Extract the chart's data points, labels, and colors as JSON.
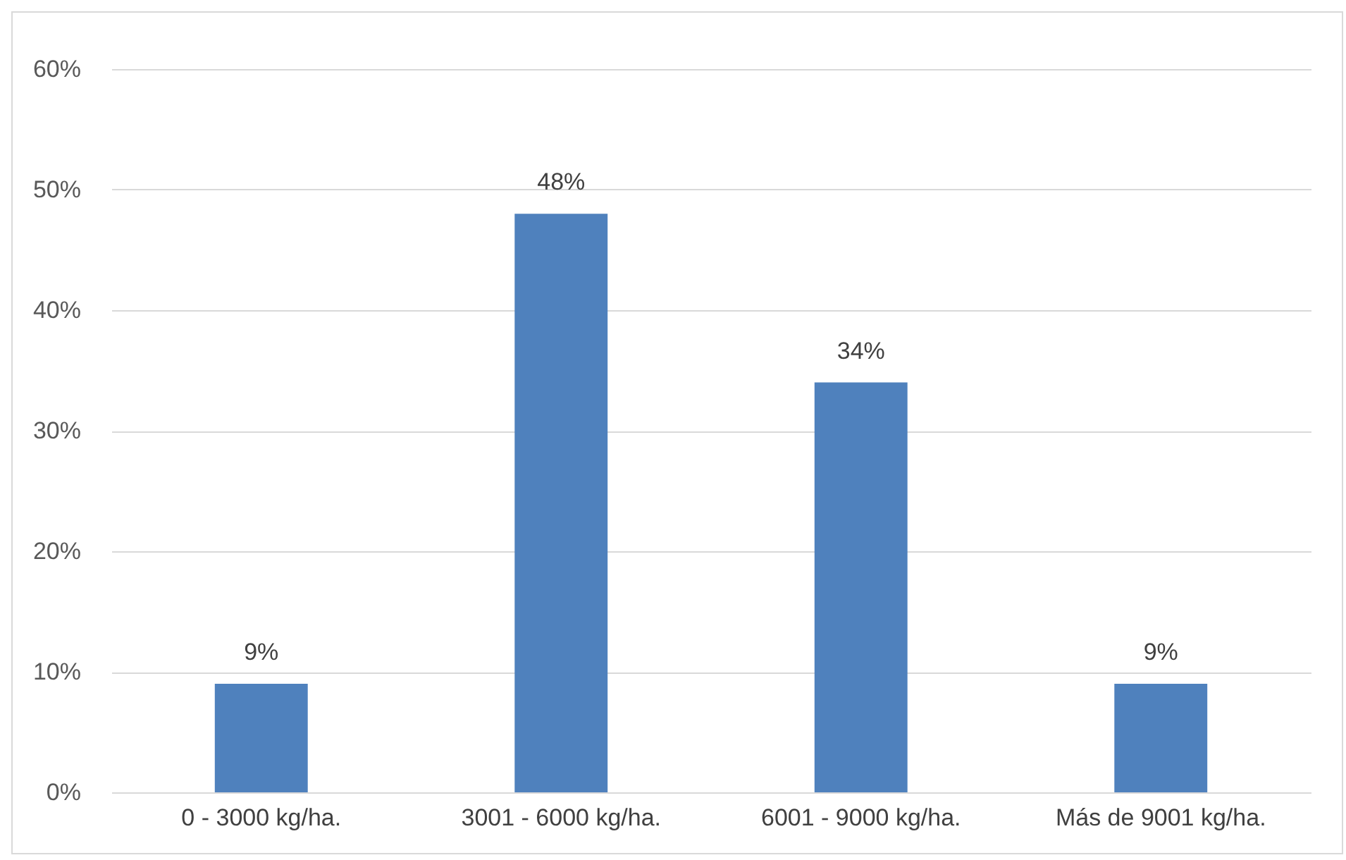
{
  "chart_data": {
    "type": "bar",
    "categories": [
      "0 - 3000 kg/ha.",
      "3001 - 6000 kg/ha.",
      "6001 - 9000 kg/ha.",
      "Más de 9001 kg/ha."
    ],
    "values": [
      9,
      48,
      34,
      9
    ],
    "value_labels": [
      "9%",
      "48%",
      "34%",
      "9%"
    ],
    "color": "#4f81bd",
    "ylim": [
      0,
      60
    ],
    "yticks": [
      {
        "value": 0,
        "label": "0%"
      },
      {
        "value": 10,
        "label": "10%"
      },
      {
        "value": 20,
        "label": "20%"
      },
      {
        "value": 30,
        "label": "30%"
      },
      {
        "value": 40,
        "label": "40%"
      },
      {
        "value": 50,
        "label": "50%"
      },
      {
        "value": 60,
        "label": "60%"
      }
    ],
    "grid": "y"
  }
}
